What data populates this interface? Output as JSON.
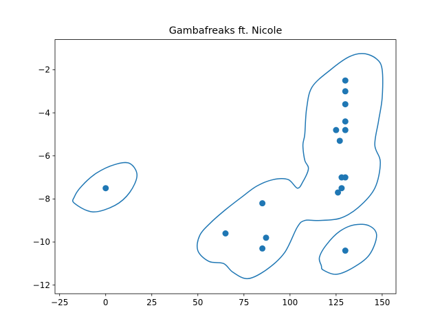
{
  "chart_data": {
    "type": "scatter",
    "title": "Gambafreaks ft. Nicole",
    "xlabel": "",
    "ylabel": "",
    "xlim": [
      -27.5,
      157.5
    ],
    "ylim": [
      -12.4,
      -0.6
    ],
    "xticks": [
      -25,
      0,
      25,
      50,
      75,
      100,
      125,
      150
    ],
    "yticks": [
      -12,
      -10,
      -8,
      -6,
      -4,
      -2
    ],
    "grid": false,
    "legend": "none",
    "color": "#1f77b4",
    "points": [
      {
        "x": 0,
        "y": -7.5
      },
      {
        "x": 65,
        "y": -9.6
      },
      {
        "x": 85,
        "y": -8.2
      },
      {
        "x": 87,
        "y": -9.8
      },
      {
        "x": 85,
        "y": -10.3
      },
      {
        "x": 130,
        "y": -2.5
      },
      {
        "x": 130,
        "y": -3.0
      },
      {
        "x": 130,
        "y": -3.6
      },
      {
        "x": 130,
        "y": -4.4
      },
      {
        "x": 125,
        "y": -4.8
      },
      {
        "x": 130,
        "y": -4.8
      },
      {
        "x": 127,
        "y": -5.3
      },
      {
        "x": 128,
        "y": -7.0
      },
      {
        "x": 130,
        "y": -7.0
      },
      {
        "x": 128,
        "y": -7.5
      },
      {
        "x": 126,
        "y": -7.7
      },
      {
        "x": 130,
        "y": -10.4
      }
    ],
    "contours": [
      [
        [
          -17,
          -8.2
        ],
        [
          -7,
          -8.6
        ],
        [
          5,
          -8.3
        ],
        [
          13,
          -7.7
        ],
        [
          17,
          -6.9
        ],
        [
          13,
          -6.35
        ],
        [
          5,
          -6.4
        ],
        [
          -5,
          -6.8
        ],
        [
          -13,
          -7.4
        ],
        [
          -17,
          -7.9
        ],
        [
          -17,
          -8.2
        ]
      ],
      [
        [
          50,
          -10.4
        ],
        [
          56,
          -10.9
        ],
        [
          64,
          -11.0
        ],
        [
          69,
          -11.4
        ],
        [
          77,
          -11.7
        ],
        [
          87,
          -11.3
        ],
        [
          97,
          -10.5
        ],
        [
          104,
          -9.3
        ],
        [
          108,
          -9.0
        ],
        [
          115,
          -9.0
        ],
        [
          127,
          -8.9
        ],
        [
          137,
          -8.4
        ],
        [
          146,
          -7.5
        ],
        [
          149,
          -6.3
        ],
        [
          146,
          -5.5
        ],
        [
          148,
          -4.4
        ],
        [
          150,
          -3.3
        ],
        [
          150,
          -2.0
        ],
        [
          147,
          -1.5
        ],
        [
          140,
          -1.25
        ],
        [
          132,
          -1.4
        ],
        [
          122,
          -2.0
        ],
        [
          112,
          -2.8
        ],
        [
          109,
          -3.8
        ],
        [
          108,
          -5.0
        ],
        [
          107,
          -5.5
        ],
        [
          108,
          -6.2
        ],
        [
          110,
          -6.6
        ],
        [
          107,
          -7.2
        ],
        [
          104,
          -7.5
        ],
        [
          99,
          -7.1
        ],
        [
          91,
          -7.1
        ],
        [
          82,
          -7.4
        ],
        [
          74,
          -7.9
        ],
        [
          65,
          -8.5
        ],
        [
          57,
          -9.1
        ],
        [
          51,
          -9.7
        ],
        [
          50,
          -10.4
        ]
      ],
      [
        [
          118,
          -11.3
        ],
        [
          125,
          -11.5
        ],
        [
          134,
          -11.2
        ],
        [
          143,
          -10.6
        ],
        [
          147,
          -9.7
        ],
        [
          143,
          -9.25
        ],
        [
          135,
          -9.2
        ],
        [
          127,
          -9.5
        ],
        [
          120,
          -10.1
        ],
        [
          116,
          -10.7
        ],
        [
          117,
          -11.1
        ],
        [
          118,
          -11.3
        ]
      ]
    ]
  }
}
